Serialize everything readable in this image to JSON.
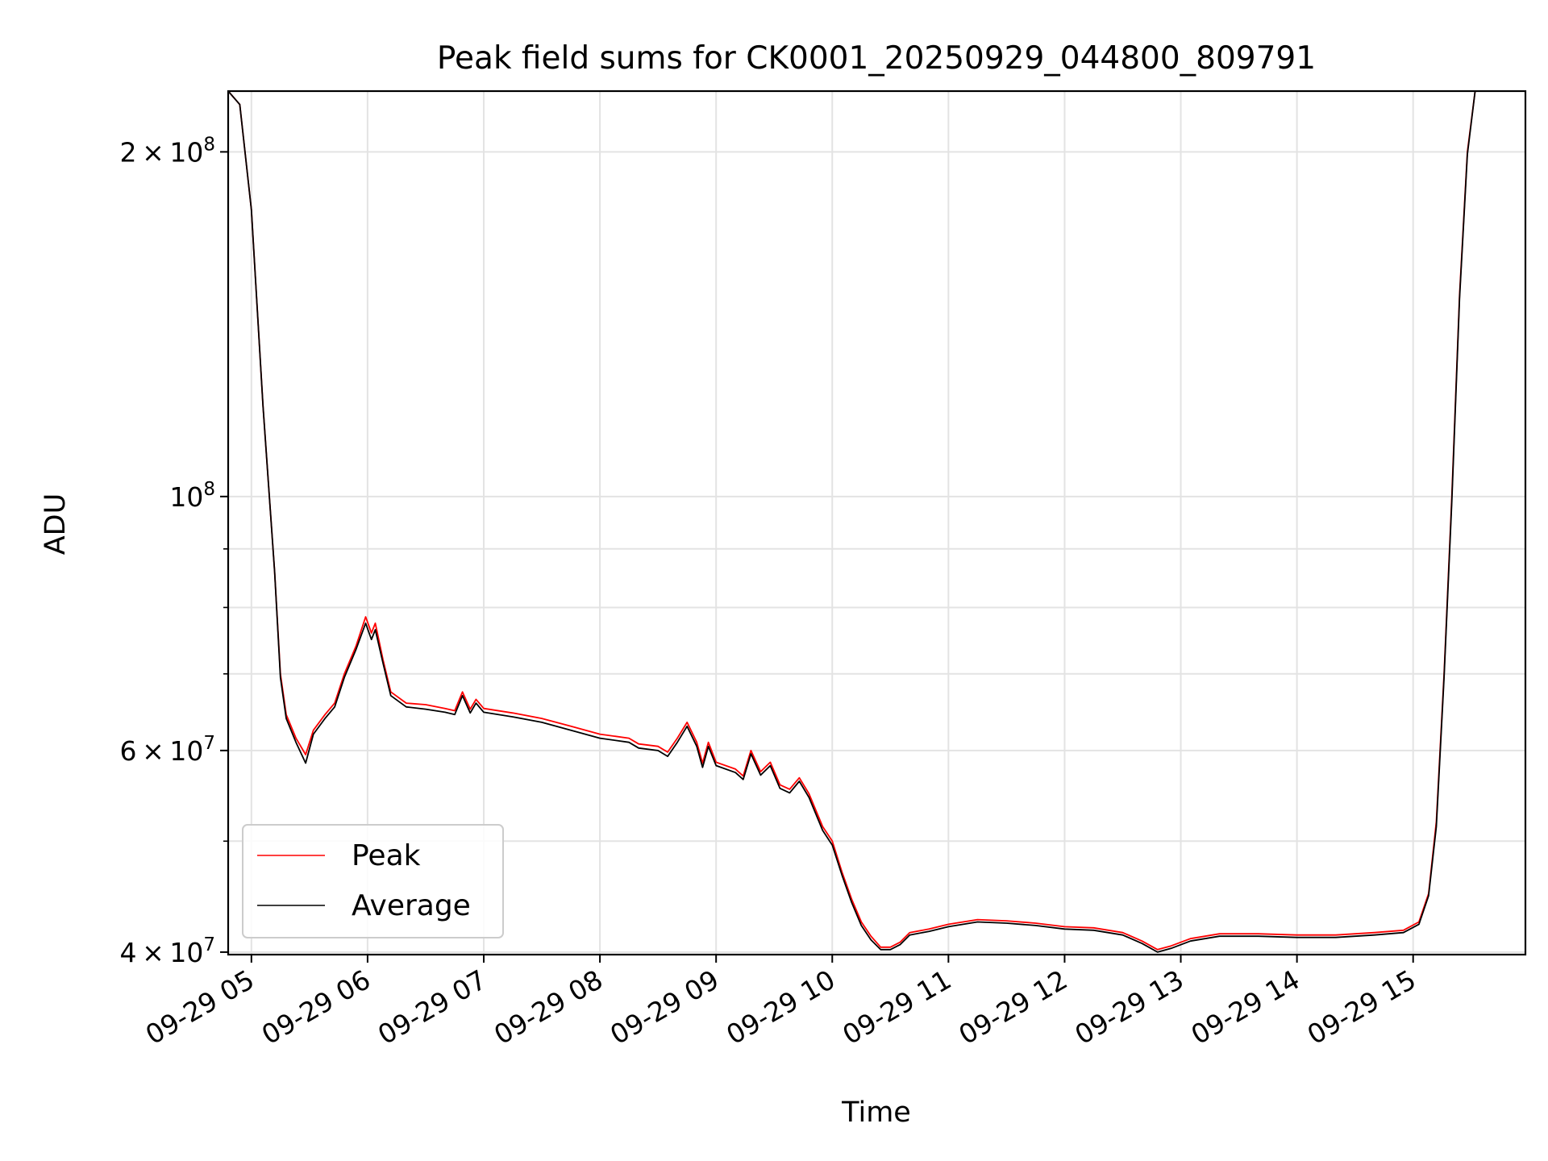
{
  "chart_data": {
    "type": "line",
    "title": "Peak field sums for CK0001_20250929_044800_809791",
    "xlabel": "Time",
    "ylabel": "ADU",
    "x_ticks": [
      "09-29 05",
      "09-29 06",
      "09-29 07",
      "09-29 08",
      "09-29 09",
      "09-29 10",
      "09-29 11",
      "09-29 12",
      "09-29 13",
      "09-29 14",
      "09-29 15"
    ],
    "x_tick_values": [
      "2025-09-29 05:00",
      "2025-09-29 06:00",
      "2025-09-29 07:00",
      "2025-09-29 08:00",
      "2025-09-29 09:00",
      "2025-09-29 10:00",
      "2025-09-29 11:00",
      "2025-09-29 12:00",
      "2025-09-29 13:00",
      "2025-09-29 14:00",
      "2025-09-29 15:00"
    ],
    "y_scale": "log",
    "y_ticks": [
      {
        "value": 200000000,
        "mantissa": "2",
        "exponent": "8"
      },
      {
        "value": 100000000,
        "mantissa": "",
        "exponent": "8"
      },
      {
        "value": 60000000,
        "mantissa": "6",
        "exponent": "7"
      },
      {
        "value": 40000000,
        "mantissa": "4",
        "exponent": "7"
      }
    ],
    "y_minor_ticks": [
      90000000,
      80000000,
      70000000,
      50000000
    ],
    "xlim": [
      "2025-09-29 04:48",
      "2025-09-29 15:58"
    ],
    "ylim": [
      39800000,
      226000000
    ],
    "grid": true,
    "legend_position": "lower-left",
    "series": [
      {
        "name": "Peak",
        "color": "#ff0000",
        "points": [
          [
            "2025-09-29 04:48",
            226000000
          ],
          [
            "2025-09-29 04:54",
            220000000
          ],
          [
            "2025-09-29 05:00",
            178000000
          ],
          [
            "2025-09-29 05:06",
            120000000
          ],
          [
            "2025-09-29 05:12",
            86000000
          ],
          [
            "2025-09-29 05:15",
            70000000
          ],
          [
            "2025-09-29 05:18",
            64500000
          ],
          [
            "2025-09-29 05:23",
            61500000
          ],
          [
            "2025-09-29 05:28",
            59500000
          ],
          [
            "2025-09-29 05:32",
            62500000
          ],
          [
            "2025-09-29 05:38",
            64500000
          ],
          [
            "2025-09-29 05:43",
            66000000
          ],
          [
            "2025-09-29 05:48",
            70000000
          ],
          [
            "2025-09-29 05:54",
            74000000
          ],
          [
            "2025-09-29 05:59",
            78500000
          ],
          [
            "2025-09-29 06:02",
            76000000
          ],
          [
            "2025-09-29 06:04",
            77500000
          ],
          [
            "2025-09-29 06:08",
            72000000
          ],
          [
            "2025-09-29 06:12",
            67500000
          ],
          [
            "2025-09-29 06:20",
            66000000
          ],
          [
            "2025-09-29 06:30",
            65800000
          ],
          [
            "2025-09-29 06:40",
            65300000
          ],
          [
            "2025-09-29 06:45",
            65000000
          ],
          [
            "2025-09-29 06:49",
            67500000
          ],
          [
            "2025-09-29 06:53",
            65200000
          ],
          [
            "2025-09-29 06:56",
            66500000
          ],
          [
            "2025-09-29 07:00",
            65300000
          ],
          [
            "2025-09-29 07:15",
            64700000
          ],
          [
            "2025-09-29 07:30",
            64000000
          ],
          [
            "2025-09-29 07:45",
            63000000
          ],
          [
            "2025-09-29 08:00",
            62000000
          ],
          [
            "2025-09-29 08:15",
            61500000
          ],
          [
            "2025-09-29 08:20",
            60800000
          ],
          [
            "2025-09-29 08:30",
            60500000
          ],
          [
            "2025-09-29 08:35",
            59800000
          ],
          [
            "2025-09-29 08:40",
            61500000
          ],
          [
            "2025-09-29 08:45",
            63500000
          ],
          [
            "2025-09-29 08:50",
            61000000
          ],
          [
            "2025-09-29 08:53",
            58500000
          ],
          [
            "2025-09-29 08:56",
            61000000
          ],
          [
            "2025-09-29 09:00",
            58600000
          ],
          [
            "2025-09-29 09:10",
            57800000
          ],
          [
            "2025-09-29 09:14",
            57000000
          ],
          [
            "2025-09-29 09:18",
            60000000
          ],
          [
            "2025-09-29 09:23",
            57500000
          ],
          [
            "2025-09-29 09:28",
            58600000
          ],
          [
            "2025-09-29 09:33",
            56000000
          ],
          [
            "2025-09-29 09:38",
            55500000
          ],
          [
            "2025-09-29 09:43",
            56800000
          ],
          [
            "2025-09-29 09:48",
            55000000
          ],
          [
            "2025-09-29 09:55",
            51500000
          ],
          [
            "2025-09-29 10:00",
            50000000
          ],
          [
            "2025-09-29 10:05",
            47000000
          ],
          [
            "2025-09-29 10:10",
            44500000
          ],
          [
            "2025-09-29 10:15",
            42500000
          ],
          [
            "2025-09-29 10:20",
            41300000
          ],
          [
            "2025-09-29 10:25",
            40400000
          ],
          [
            "2025-09-29 10:30",
            40400000
          ],
          [
            "2025-09-29 10:35",
            40800000
          ],
          [
            "2025-09-29 10:40",
            41600000
          ],
          [
            "2025-09-29 10:50",
            41900000
          ],
          [
            "2025-09-29 11:00",
            42300000
          ],
          [
            "2025-09-29 11:15",
            42700000
          ],
          [
            "2025-09-29 11:30",
            42600000
          ],
          [
            "2025-09-29 11:45",
            42400000
          ],
          [
            "2025-09-29 12:00",
            42100000
          ],
          [
            "2025-09-29 12:15",
            42000000
          ],
          [
            "2025-09-29 12:30",
            41600000
          ],
          [
            "2025-09-29 12:40",
            40900000
          ],
          [
            "2025-09-29 12:48",
            40200000
          ],
          [
            "2025-09-29 12:55",
            40500000
          ],
          [
            "2025-09-29 13:05",
            41100000
          ],
          [
            "2025-09-29 13:20",
            41500000
          ],
          [
            "2025-09-29 13:40",
            41500000
          ],
          [
            "2025-09-29 14:00",
            41400000
          ],
          [
            "2025-09-29 14:20",
            41400000
          ],
          [
            "2025-09-29 14:40",
            41600000
          ],
          [
            "2025-09-29 14:55",
            41800000
          ],
          [
            "2025-09-29 15:03",
            42500000
          ],
          [
            "2025-09-29 15:08",
            45000000
          ],
          [
            "2025-09-29 15:12",
            52000000
          ],
          [
            "2025-09-29 15:16",
            70000000
          ],
          [
            "2025-09-29 15:20",
            100000000
          ],
          [
            "2025-09-29 15:24",
            150000000
          ],
          [
            "2025-09-29 15:28",
            200000000
          ],
          [
            "2025-09-29 15:32",
            226000000
          ],
          [
            "2025-09-29 15:58",
            226000000
          ]
        ]
      },
      {
        "name": "Average",
        "color": "#000000",
        "points": [
          [
            "2025-09-29 04:48",
            226000000
          ],
          [
            "2025-09-29 04:54",
            220000000
          ],
          [
            "2025-09-29 05:00",
            178000000
          ],
          [
            "2025-09-29 05:06",
            120000000
          ],
          [
            "2025-09-29 05:12",
            86000000
          ],
          [
            "2025-09-29 05:15",
            69500000
          ],
          [
            "2025-09-29 05:18",
            64000000
          ],
          [
            "2025-09-29 05:23",
            61000000
          ],
          [
            "2025-09-29 05:28",
            58500000
          ],
          [
            "2025-09-29 05:32",
            62000000
          ],
          [
            "2025-09-29 05:38",
            64000000
          ],
          [
            "2025-09-29 05:43",
            65500000
          ],
          [
            "2025-09-29 05:48",
            69500000
          ],
          [
            "2025-09-29 05:54",
            73500000
          ],
          [
            "2025-09-29 05:59",
            77500000
          ],
          [
            "2025-09-29 06:02",
            75000000
          ],
          [
            "2025-09-29 06:04",
            76500000
          ],
          [
            "2025-09-29 06:08",
            71500000
          ],
          [
            "2025-09-29 06:12",
            67000000
          ],
          [
            "2025-09-29 06:20",
            65500000
          ],
          [
            "2025-09-29 06:30",
            65200000
          ],
          [
            "2025-09-29 06:40",
            64800000
          ],
          [
            "2025-09-29 06:45",
            64500000
          ],
          [
            "2025-09-29 06:49",
            67000000
          ],
          [
            "2025-09-29 06:53",
            64700000
          ],
          [
            "2025-09-29 06:56",
            66000000
          ],
          [
            "2025-09-29 07:00",
            64800000
          ],
          [
            "2025-09-29 07:15",
            64200000
          ],
          [
            "2025-09-29 07:30",
            63500000
          ],
          [
            "2025-09-29 07:45",
            62500000
          ],
          [
            "2025-09-29 08:00",
            61500000
          ],
          [
            "2025-09-29 08:15",
            61000000
          ],
          [
            "2025-09-29 08:20",
            60300000
          ],
          [
            "2025-09-29 08:30",
            60000000
          ],
          [
            "2025-09-29 08:35",
            59300000
          ],
          [
            "2025-09-29 08:40",
            61000000
          ],
          [
            "2025-09-29 08:45",
            63000000
          ],
          [
            "2025-09-29 08:50",
            60500000
          ],
          [
            "2025-09-29 08:53",
            58000000
          ],
          [
            "2025-09-29 08:56",
            60500000
          ],
          [
            "2025-09-29 09:00",
            58200000
          ],
          [
            "2025-09-29 09:10",
            57400000
          ],
          [
            "2025-09-29 09:14",
            56600000
          ],
          [
            "2025-09-29 09:18",
            59600000
          ],
          [
            "2025-09-29 09:23",
            57100000
          ],
          [
            "2025-09-29 09:28",
            58200000
          ],
          [
            "2025-09-29 09:33",
            55600000
          ],
          [
            "2025-09-29 09:38",
            55100000
          ],
          [
            "2025-09-29 09:43",
            56400000
          ],
          [
            "2025-09-29 09:48",
            54600000
          ],
          [
            "2025-09-29 09:55",
            51100000
          ],
          [
            "2025-09-29 10:00",
            49600000
          ],
          [
            "2025-09-29 10:05",
            46700000
          ],
          [
            "2025-09-29 10:10",
            44200000
          ],
          [
            "2025-09-29 10:15",
            42200000
          ],
          [
            "2025-09-29 10:20",
            41000000
          ],
          [
            "2025-09-29 10:25",
            40200000
          ],
          [
            "2025-09-29 10:30",
            40200000
          ],
          [
            "2025-09-29 10:35",
            40600000
          ],
          [
            "2025-09-29 10:40",
            41400000
          ],
          [
            "2025-09-29 10:50",
            41700000
          ],
          [
            "2025-09-29 11:00",
            42100000
          ],
          [
            "2025-09-29 11:15",
            42500000
          ],
          [
            "2025-09-29 11:30",
            42400000
          ],
          [
            "2025-09-29 11:45",
            42200000
          ],
          [
            "2025-09-29 12:00",
            41900000
          ],
          [
            "2025-09-29 12:15",
            41800000
          ],
          [
            "2025-09-29 12:30",
            41400000
          ],
          [
            "2025-09-29 12:40",
            40700000
          ],
          [
            "2025-09-29 12:48",
            40000000
          ],
          [
            "2025-09-29 12:55",
            40300000
          ],
          [
            "2025-09-29 13:05",
            40900000
          ],
          [
            "2025-09-29 13:20",
            41300000
          ],
          [
            "2025-09-29 13:40",
            41300000
          ],
          [
            "2025-09-29 14:00",
            41200000
          ],
          [
            "2025-09-29 14:20",
            41200000
          ],
          [
            "2025-09-29 14:40",
            41400000
          ],
          [
            "2025-09-29 14:55",
            41600000
          ],
          [
            "2025-09-29 15:03",
            42300000
          ],
          [
            "2025-09-29 15:08",
            44800000
          ],
          [
            "2025-09-29 15:12",
            51500000
          ],
          [
            "2025-09-29 15:16",
            69500000
          ],
          [
            "2025-09-29 15:20",
            99000000
          ],
          [
            "2025-09-29 15:24",
            149000000
          ],
          [
            "2025-09-29 15:28",
            199000000
          ],
          [
            "2025-09-29 15:32",
            226000000
          ],
          [
            "2025-09-29 15:58",
            226000000
          ]
        ]
      }
    ]
  }
}
